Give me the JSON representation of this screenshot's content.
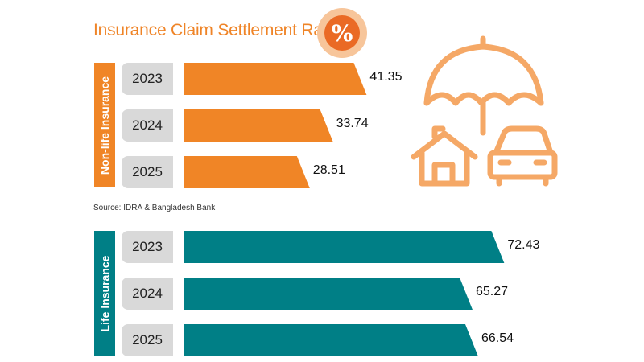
{
  "title": "Insurance Claim Settlement Rate",
  "percent_symbol": "%",
  "source": "Source: IDRA & Bangladesh Bank",
  "colors": {
    "orange": "#f08526",
    "teal": "#007f86",
    "title": "#ef8427",
    "icon": "#f5a866"
  },
  "icons": [
    "percent-badge-icon",
    "umbrella-icon",
    "house-icon",
    "car-icon"
  ],
  "chart_data": [
    {
      "type": "bar",
      "group_label": "Non-life Insurance",
      "categories": [
        "2023",
        "2024",
        "2025"
      ],
      "values": [
        41.35,
        33.74,
        28.51
      ],
      "value_labels": [
        "41.35",
        "33.74",
        "28.51"
      ],
      "orientation": "horizontal"
    },
    {
      "type": "bar",
      "group_label": "Life Insurance",
      "categories": [
        "2023",
        "2024",
        "2025"
      ],
      "values": [
        72.43,
        65.27,
        66.54
      ],
      "value_labels": [
        "72.43",
        "65.27",
        "66.54"
      ],
      "orientation": "horizontal"
    }
  ]
}
